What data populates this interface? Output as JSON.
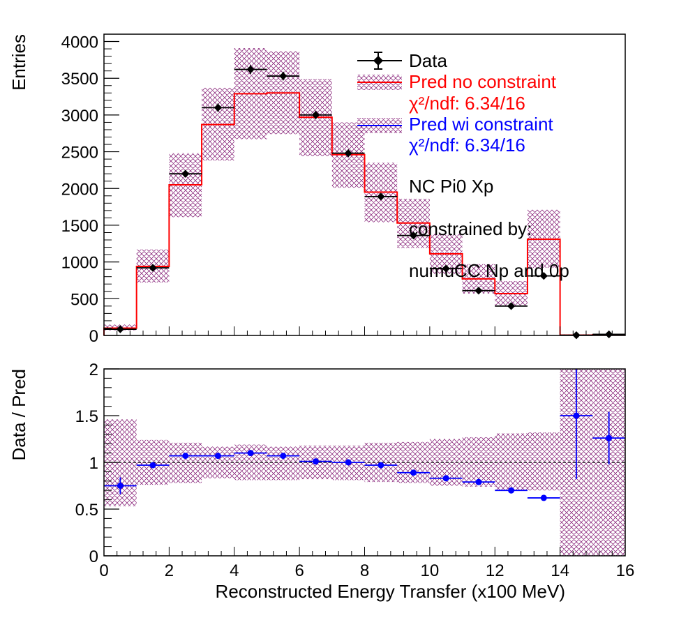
{
  "chart_data": [
    {
      "type": "bar",
      "panel": "top",
      "ylabel": "Entries",
      "xlim": [
        0,
        16
      ],
      "ylim": [
        0,
        4100
      ],
      "yticks": [
        0,
        500,
        1000,
        1500,
        2000,
        2500,
        3000,
        3500,
        4000
      ],
      "bin_edges": [
        0,
        1,
        2,
        3,
        4,
        5,
        6,
        7,
        8,
        9,
        10,
        11,
        12,
        13,
        14,
        15,
        16
      ],
      "series": [
        {
          "name": "Data",
          "style": "markers-with-errors",
          "color": "#000000",
          "values": [
            85,
            920,
            2200,
            3100,
            3620,
            3530,
            3000,
            2480,
            1890,
            1360,
            910,
            610,
            400,
            810,
            3,
            15
          ],
          "errors": [
            9,
            30,
            47,
            56,
            60,
            59,
            55,
            50,
            43,
            37,
            30,
            25,
            20,
            28,
            2,
            4
          ]
        },
        {
          "name": "Pred no constraint",
          "style": "step-with-band",
          "color": "#ff0000",
          "band_color": "#800060",
          "values": [
            100,
            940,
            2050,
            2870,
            3290,
            3300,
            2970,
            2460,
            1950,
            1530,
            1110,
            770,
            570,
            1310,
            5,
            10
          ],
          "band_low": [
            70,
            720,
            1610,
            2380,
            2670,
            2740,
            2440,
            2010,
            1540,
            1190,
            840,
            570,
            400,
            920,
            0,
            0
          ],
          "band_high": [
            150,
            1170,
            2480,
            3370,
            3910,
            3870,
            3490,
            2900,
            2350,
            1860,
            1380,
            970,
            740,
            1710,
            15,
            20
          ],
          "chi2_label": "χ²/ndf: 6.34/16"
        },
        {
          "name": "Pred wi constraint",
          "style": "step",
          "color": "#0000ff",
          "chi2_label": "χ²/ndf: 6.34/16"
        }
      ],
      "annotations": [
        "NC Pi0 Xp",
        "constrained by:",
        "numuCC Np and 0p"
      ]
    },
    {
      "type": "scatter",
      "panel": "bottom",
      "xlabel": "Reconstructed Energy Transfer (x100 MeV)",
      "ylabel": "Data / Pred",
      "xlim": [
        0,
        16
      ],
      "ylim": [
        0,
        2
      ],
      "xticks": [
        0,
        2,
        4,
        6,
        8,
        10,
        12,
        14,
        16
      ],
      "yticks": [
        0,
        0.5,
        1,
        1.5,
        2
      ],
      "reference_line": 1,
      "bin_edges": [
        0,
        1,
        2,
        3,
        4,
        5,
        6,
        7,
        8,
        9,
        10,
        11,
        12,
        13,
        14,
        15,
        16
      ],
      "series": [
        {
          "name": "Data / Pred",
          "color": "#0000ff",
          "values": [
            0.75,
            0.97,
            1.07,
            1.07,
            1.1,
            1.07,
            1.01,
            1.0,
            0.97,
            0.89,
            0.83,
            0.79,
            0.7,
            0.62,
            1.5,
            1.26
          ],
          "errors": [
            0.09,
            0.03,
            0.02,
            0.02,
            0.02,
            0.02,
            0.02,
            0.02,
            0.02,
            0.02,
            0.02,
            0.02,
            0.02,
            0.02,
            0.68,
            0.28
          ],
          "band_low": [
            0.53,
            0.76,
            0.78,
            0.83,
            0.81,
            0.81,
            0.82,
            0.81,
            0.79,
            0.78,
            0.75,
            0.74,
            0.7,
            0.7,
            0,
            0
          ],
          "band_high": [
            1.46,
            1.24,
            1.21,
            1.17,
            1.19,
            1.17,
            1.18,
            1.18,
            1.21,
            1.22,
            1.25,
            1.27,
            1.31,
            1.32,
            2,
            2
          ]
        }
      ]
    }
  ]
}
